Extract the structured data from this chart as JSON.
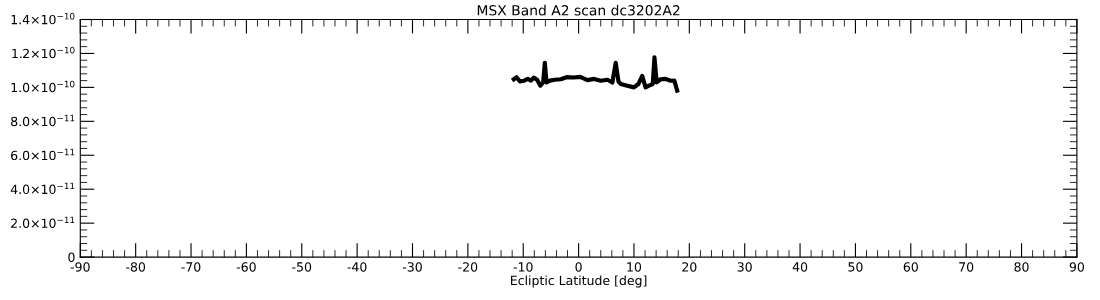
{
  "chart_data": {
    "type": "line",
    "title": "MSX Band A2 scan dc3202A2",
    "xlabel": "Ecliptic Latitude [deg]",
    "x": [
      -11.7,
      -11.2,
      -10.6,
      -9.9,
      -9.2,
      -8.6,
      -8.1,
      -7.5,
      -6.9,
      -6.4,
      -6.1,
      -5.8,
      -5.2,
      -4.3,
      -3.2,
      -2.2,
      -0.9,
      0.3,
      1.6,
      2.8,
      4.0,
      5.2,
      6.1,
      6.7,
      7.2,
      7.6,
      8.8,
      10.0,
      10.8,
      11.5,
      12.1,
      12.7,
      13.4,
      13.7,
      14.1,
      14.8,
      15.7,
      16.6,
      17.3,
      17.8
    ],
    "series": [
      {
        "color": "#000000",
        "values": [
          1.048e-10,
          1.06e-10,
          1.035e-10,
          1.039e-10,
          1.05e-10,
          1.04e-10,
          1.058e-10,
          1.045e-10,
          1.01e-10,
          1.03e-10,
          1.145e-10,
          1.029e-10,
          1.04e-10,
          1.045e-10,
          1.048e-10,
          1.06e-10,
          1.058e-10,
          1.062e-10,
          1.043e-10,
          1.05e-10,
          1.039e-10,
          1.045e-10,
          1.029e-10,
          1.145e-10,
          1.035e-10,
          1.02e-10,
          1.01e-10,
          1e-10,
          1.02e-10,
          1.067e-10,
          1e-10,
          1.01e-10,
          1.02e-10,
          1.177e-10,
          1.03e-10,
          1.048e-10,
          1.05e-10,
          1.039e-10,
          1.04e-10,
          9.81e-11
        ]
      }
    ],
    "xlim": [
      -90,
      90
    ],
    "xticks": [
      -90,
      -80,
      -70,
      -60,
      -50,
      -40,
      -30,
      -20,
      -10,
      0,
      10,
      20,
      30,
      40,
      50,
      60,
      70,
      80,
      90
    ],
    "ylim": [
      0,
      1.4e-10
    ],
    "yticks": [
      {
        "value": 0,
        "label": "0"
      },
      {
        "value": 2e-11,
        "label": "2.0×10$^{−11}$"
      },
      {
        "value": 4e-11,
        "label": "4.0×10$^{−11}$"
      },
      {
        "value": 6e-11,
        "label": "6.0×10$^{−11}$"
      },
      {
        "value": 8e-11,
        "label": "8.0×10$^{−11}$"
      },
      {
        "value": 1e-10,
        "label": "1.0×10$^{−10}$"
      },
      {
        "value": 1.2e-10,
        "label": "1.2×10$^{−10}$"
      },
      {
        "value": 1.4e-10,
        "label": "1.4×10$^{−10}$"
      }
    ],
    "grid": false,
    "legend": false,
    "marker": "none",
    "line_style": "solid"
  }
}
